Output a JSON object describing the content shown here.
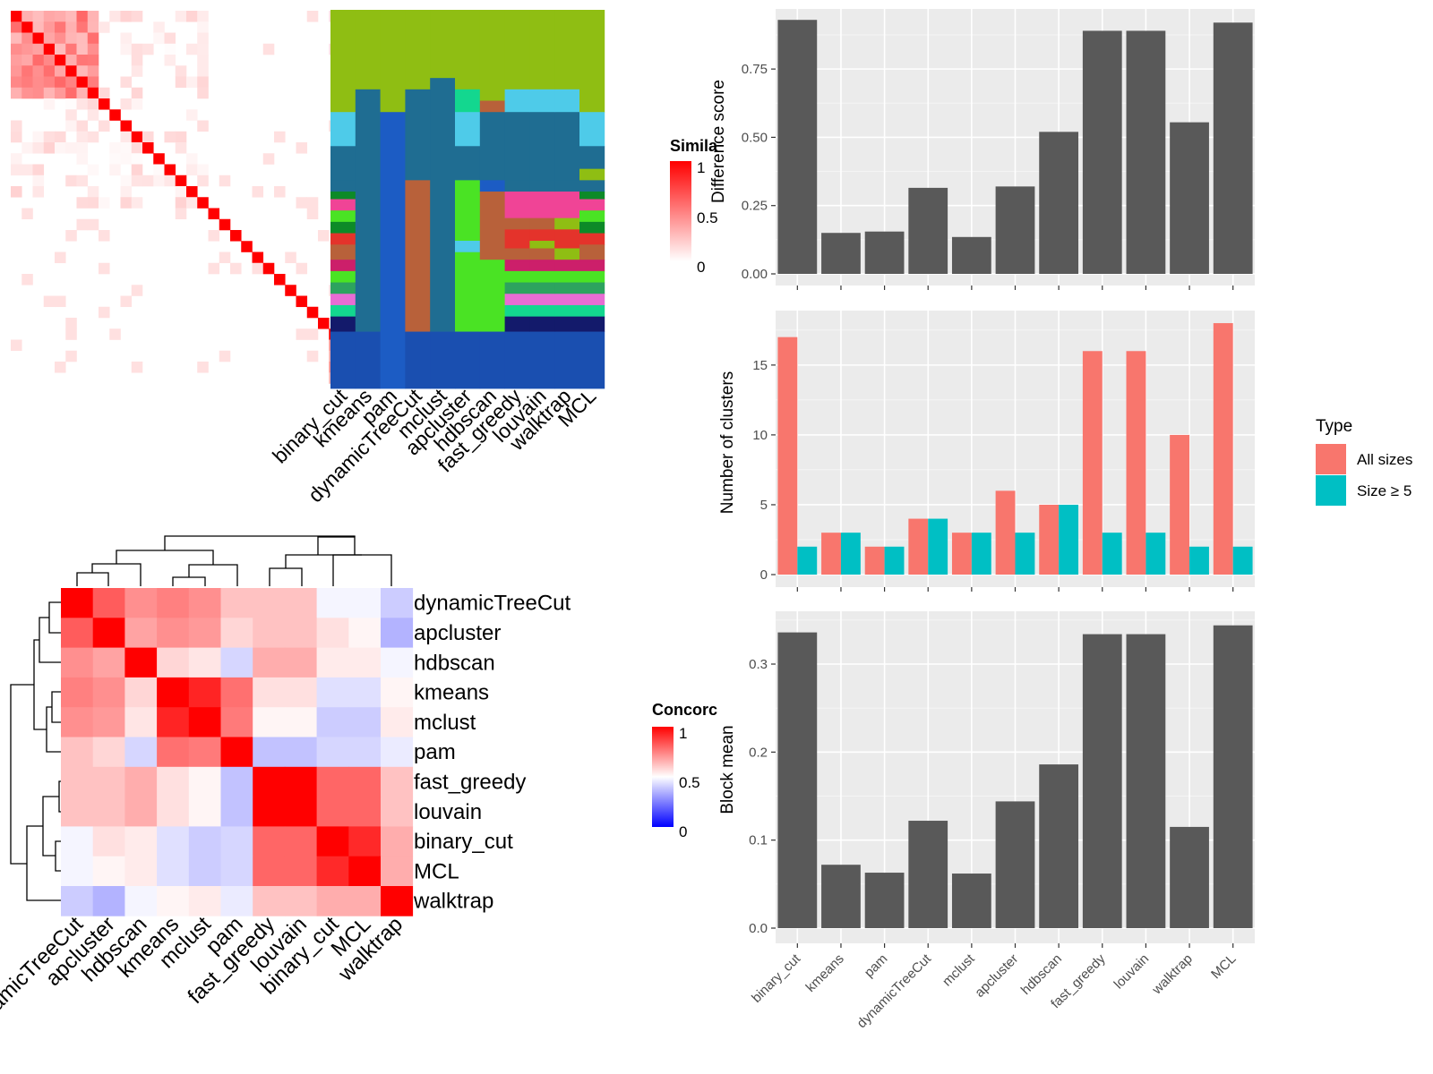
{
  "methods_order": [
    "binary_cut",
    "kmeans",
    "pam",
    "dynamicTreeCut",
    "mclust",
    "apcluster",
    "hdbscan",
    "fast_greedy",
    "louvain",
    "walktrap",
    "MCL"
  ],
  "similarity_heatmap": {
    "legend_title": "Simila",
    "legend_ticks": [
      "1",
      "0.5",
      "0"
    ],
    "colors": {
      "low": "#ffffff",
      "high": "#ff0000"
    }
  },
  "cluster_colors": [
    "#8fbe13",
    "#1f6d92",
    "#1c5cc4",
    "#4ecbe9",
    "#b8613a",
    "#4ae324",
    "#f04496",
    "#e4332b",
    "#0d8a28",
    "#13d78f",
    "#cc1f6a",
    "#2da35f",
    "#e86cd3",
    "#131a6b",
    "#1a4fb0"
  ],
  "concordance_heatmap": {
    "legend_title": "Concorc",
    "legend_ticks": [
      "1",
      "0.5",
      "0"
    ],
    "row_labels": [
      "dynamicTreeCut",
      "apcluster",
      "hdbscan",
      "kmeans",
      "mclust",
      "pam",
      "fast_greedy",
      "louvain",
      "binary_cut",
      "MCL",
      "walktrap"
    ],
    "col_labels": [
      "dynamicTreeCut",
      "apcluster",
      "hdbscan",
      "kmeans",
      "mclust",
      "pam",
      "fast_greedy",
      "louvain",
      "binary_cut",
      "MCL",
      "walktrap"
    ],
    "colors": {
      "low": "#0000ff",
      "mid": "#ffffff",
      "high": "#ff0000"
    }
  },
  "chart_data": [
    {
      "type": "bar",
      "categories": [
        "binary_cut",
        "kmeans",
        "pam",
        "dynamicTreeCut",
        "mclust",
        "apcluster",
        "hdbscan",
        "fast_greedy",
        "louvain",
        "walktrap",
        "MCL"
      ],
      "values": [
        0.93,
        0.15,
        0.155,
        0.315,
        0.135,
        0.32,
        0.52,
        0.89,
        0.89,
        0.555,
        0.92
      ],
      "ylabel": "Difference score",
      "ylim": [
        0,
        0.97
      ],
      "yticks": [
        "0.00",
        "0.25",
        "0.50",
        "0.75"
      ]
    },
    {
      "type": "bar",
      "categories": [
        "binary_cut",
        "kmeans",
        "pam",
        "dynamicTreeCut",
        "mclust",
        "apcluster",
        "hdbscan",
        "fast_greedy",
        "louvain",
        "walktrap",
        "MCL"
      ],
      "series": [
        {
          "name": "All sizes",
          "color": "#f8766d",
          "values": [
            17,
            3,
            2,
            4,
            3,
            6,
            5,
            16,
            16,
            10,
            18
          ]
        },
        {
          "name": "Size ≥ 5",
          "color": "#00bfc4",
          "values": [
            2,
            3,
            2,
            4,
            3,
            3,
            5,
            3,
            3,
            2,
            2
          ]
        }
      ],
      "ylabel": "Number of clusters",
      "ylim": [
        0,
        18.9
      ],
      "yticks": [
        "0",
        "5",
        "10",
        "15"
      ],
      "legend": {
        "title": "Type",
        "position": "right"
      }
    },
    {
      "type": "bar",
      "categories": [
        "binary_cut",
        "kmeans",
        "pam",
        "dynamicTreeCut",
        "mclust",
        "apcluster",
        "hdbscan",
        "fast_greedy",
        "louvain",
        "walktrap",
        "MCL"
      ],
      "values": [
        0.336,
        0.072,
        0.063,
        0.122,
        0.062,
        0.144,
        0.186,
        0.334,
        0.334,
        0.115,
        0.344
      ],
      "ylabel": "Block mean",
      "ylim": [
        0,
        0.36
      ],
      "yticks": [
        "0.0",
        "0.1",
        "0.2",
        "0.3"
      ]
    }
  ]
}
